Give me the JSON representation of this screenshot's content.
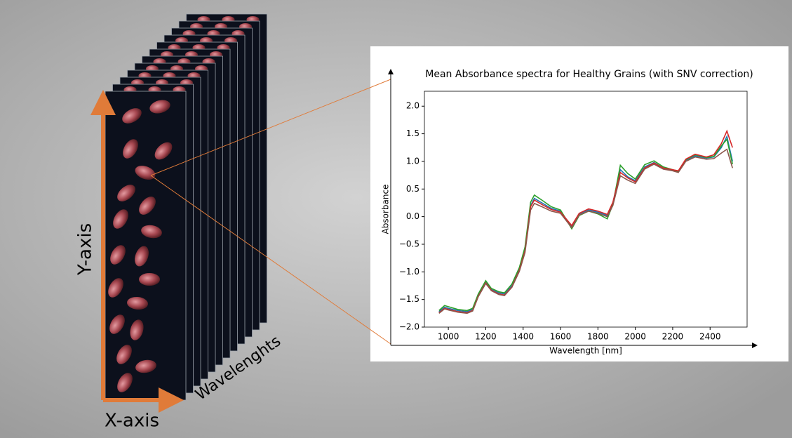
{
  "figure_labels": {
    "y_axis": "Y-axis",
    "x_axis": "X-axis",
    "wavelengths": "Wavelenghts"
  },
  "chart_data": {
    "type": "line",
    "title": "Mean Absorbance spectra for Healthy Grains (with SNV correction)",
    "xlabel": "Wavelength [nm]",
    "ylabel": "Absorbance",
    "x": [
      950,
      980,
      1000,
      1050,
      1100,
      1130,
      1160,
      1200,
      1230,
      1270,
      1300,
      1340,
      1380,
      1410,
      1440,
      1460,
      1500,
      1550,
      1600,
      1660,
      1700,
      1750,
      1800,
      1850,
      1880,
      1920,
      1960,
      2000,
      2050,
      2100,
      2150,
      2200,
      2230,
      2270,
      2320,
      2380,
      2420,
      2460,
      2490,
      2520
    ],
    "series": [
      {
        "color": "#1f77b4",
        "values": [
          -1.72,
          -1.64,
          -1.66,
          -1.7,
          -1.72,
          -1.68,
          -1.42,
          -1.18,
          -1.32,
          -1.38,
          -1.4,
          -1.25,
          -0.95,
          -0.6,
          0.2,
          0.33,
          0.25,
          0.15,
          0.1,
          -0.18,
          0.05,
          0.12,
          0.08,
          0.02,
          0.25,
          0.85,
          0.72,
          0.65,
          0.9,
          0.98,
          0.88,
          0.84,
          0.82,
          1.02,
          1.1,
          1.06,
          1.08,
          1.25,
          1.45,
          1.0
        ]
      },
      {
        "color": "#2ca02c",
        "values": [
          -1.7,
          -1.61,
          -1.63,
          -1.68,
          -1.7,
          -1.66,
          -1.4,
          -1.16,
          -1.3,
          -1.36,
          -1.38,
          -1.22,
          -0.92,
          -0.55,
          0.26,
          0.39,
          0.3,
          0.18,
          0.12,
          -0.22,
          0.02,
          0.1,
          0.05,
          -0.04,
          0.22,
          0.93,
          0.78,
          0.68,
          0.94,
          1.01,
          0.9,
          0.85,
          0.82,
          1.03,
          1.12,
          1.07,
          1.09,
          1.28,
          1.4,
          0.95
        ]
      },
      {
        "color": "#d62728",
        "values": [
          -1.74,
          -1.66,
          -1.68,
          -1.72,
          -1.74,
          -1.7,
          -1.44,
          -1.2,
          -1.33,
          -1.4,
          -1.42,
          -1.27,
          -0.97,
          -0.62,
          0.18,
          0.3,
          0.22,
          0.13,
          0.08,
          -0.16,
          0.06,
          0.14,
          0.1,
          0.04,
          0.26,
          0.8,
          0.7,
          0.63,
          0.88,
          0.97,
          0.88,
          0.85,
          0.83,
          1.04,
          1.13,
          1.08,
          1.12,
          1.32,
          1.55,
          1.25
        ]
      },
      {
        "color": "#8c564b",
        "values": [
          -1.75,
          -1.67,
          -1.69,
          -1.73,
          -1.75,
          -1.71,
          -1.45,
          -1.21,
          -1.34,
          -1.41,
          -1.43,
          -1.28,
          -0.99,
          -0.65,
          0.12,
          0.24,
          0.18,
          0.1,
          0.06,
          -0.2,
          0.03,
          0.1,
          0.06,
          0.0,
          0.2,
          0.74,
          0.66,
          0.6,
          0.86,
          0.95,
          0.86,
          0.83,
          0.8,
          1.0,
          1.08,
          1.04,
          1.05,
          1.15,
          1.22,
          0.88
        ]
      }
    ],
    "xlim": [
      872,
      2598
    ],
    "ylim": [
      -2.0,
      2.27
    ],
    "xticks": [
      1000,
      1200,
      1400,
      1600,
      1800,
      2000,
      2200,
      2400
    ],
    "yticks": [
      {
        "value": -2.0,
        "label": "−2.0"
      },
      {
        "value": -1.5,
        "label": "−1.5"
      },
      {
        "value": -1.0,
        "label": "−1.0"
      },
      {
        "value": -0.5,
        "label": "−0.5"
      },
      {
        "value": 0.0,
        "label": "0.0"
      },
      {
        "value": 0.5,
        "label": "0.5"
      },
      {
        "value": 1.0,
        "label": "1.0"
      },
      {
        "value": 1.5,
        "label": "1.5"
      },
      {
        "value": 2.0,
        "label": "2.0"
      }
    ]
  }
}
